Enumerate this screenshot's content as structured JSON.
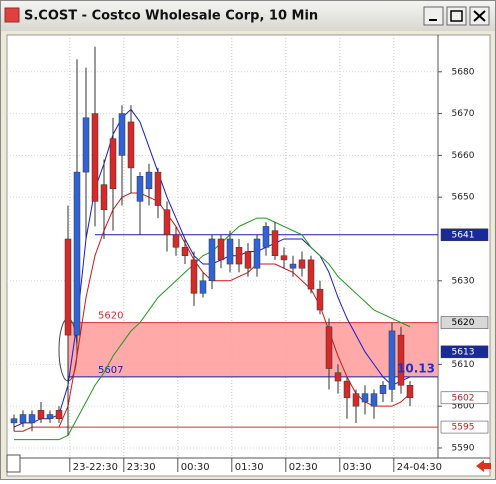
{
  "window": {
    "title": "S.COST - Costco Wholesale Corp, 10 Min"
  },
  "chart_data": {
    "type": "candlestick",
    "ylim": [
      5587.6,
      5688.8
    ],
    "yticks": [
      5590,
      5600,
      5610,
      5630,
      5650,
      5660,
      5670,
      5680
    ],
    "grid": true,
    "x_tick_labels": [
      "23-22:30",
      "23:30",
      "00:30",
      "01:30",
      "02:30",
      "03:30",
      "24-04:30"
    ],
    "up_color": "#2f63d6",
    "down_color": "#d42a2a",
    "open": [
      5596,
      5596,
      5596,
      5599,
      5597,
      5599,
      5640,
      5617,
      5656,
      5670,
      5653,
      5664,
      5660,
      5668,
      5649,
      5652,
      5656,
      5647,
      5641,
      5638,
      5635,
      5627,
      5630,
      5640,
      5634,
      5638,
      5637,
      5633,
      5638,
      5642,
      5636,
      5633,
      5635,
      5635,
      5628,
      5619,
      5608,
      5606,
      5603,
      5601,
      5600,
      5603,
      5604,
      5617,
      5605
    ],
    "high": [
      5598,
      5599,
      5599,
      5601,
      5599,
      5600,
      5648,
      5683,
      5681,
      5686,
      5659,
      5669,
      5672,
      5672,
      5656,
      5658,
      5657,
      5649,
      5643,
      5640,
      5637,
      5632,
      5641,
      5641,
      5642,
      5640,
      5639,
      5641,
      5644,
      5644,
      5638,
      5636,
      5637,
      5636,
      5630,
      5621,
      5610,
      5607,
      5604,
      5605,
      5604,
      5606,
      5620,
      5619,
      5606
    ],
    "low": [
      5594,
      5595,
      5594,
      5596,
      5596,
      5596,
      5593,
      5615,
      5640,
      5643,
      5640,
      5642,
      5648,
      5651,
      5641,
      5648,
      5645,
      5637,
      5636,
      5634,
      5624,
      5626,
      5628,
      5633,
      5632,
      5632,
      5631,
      5631,
      5636,
      5635,
      5633,
      5631,
      5631,
      5627,
      5622,
      5604,
      5603,
      5597,
      5596,
      5598,
      5597,
      5601,
      5601,
      5603,
      5600
    ],
    "close": [
      5597,
      5598,
      5598,
      5597,
      5598,
      5597,
      5617,
      5656,
      5669,
      5649,
      5647,
      5652,
      5670,
      5657,
      5655,
      5656,
      5648,
      5641,
      5638,
      5636,
      5627,
      5630,
      5640,
      5635,
      5640,
      5634,
      5633,
      5640,
      5643,
      5636,
      5635,
      5634,
      5633,
      5628,
      5623,
      5609,
      5606,
      5602,
      5600,
      5603,
      5603,
      5605,
      5618,
      5605,
      5602
    ],
    "overlays": [
      {
        "color": "#1a1ad0",
        "values": [
          5595,
          5596,
          5596,
          5597,
          5597,
          5598,
          5605,
          5620,
          5640,
          5652,
          5658,
          5665,
          5669,
          5671,
          5668,
          5662,
          5656,
          5650,
          5645,
          5640,
          5636,
          5634,
          5634,
          5635,
          5636,
          5636,
          5637,
          5637,
          5638,
          5639,
          5640,
          5640,
          5640,
          5638,
          5636,
          5632,
          5626,
          5621,
          5617,
          5613,
          5610,
          5607,
          5605,
          5606,
          5607
        ]
      },
      {
        "color": "#d01818",
        "values": [
          5594,
          5594,
          5595,
          5595,
          5595,
          5595,
          5600,
          5612,
          5626,
          5636,
          5642,
          5647,
          5650,
          5651,
          5651,
          5650,
          5649,
          5646,
          5643,
          5639,
          5635,
          5632,
          5630,
          5630,
          5630,
          5631,
          5632,
          5634,
          5634,
          5634,
          5633,
          5632,
          5630,
          5628,
          5624,
          5618,
          5612,
          5607,
          5603,
          5601,
          5600,
          5600,
          5600,
          5601,
          5603
        ]
      },
      {
        "color": "#1c9a1c",
        "values": [
          5592,
          5592,
          5592,
          5592,
          5592,
          5592,
          5593,
          5597,
          5601,
          5605,
          5608,
          5612,
          5615,
          5618,
          5620,
          5623,
          5626,
          5628,
          5630,
          5632,
          5634,
          5636,
          5637,
          5639,
          5641,
          5643,
          5644,
          5645,
          5645,
          5644,
          5643,
          5642,
          5641,
          5638,
          5636,
          5634,
          5631,
          5629,
          5627,
          5625,
          5623,
          5622,
          5621,
          5620,
          5619
        ]
      }
    ],
    "zone": {
      "from": 5607,
      "to": 5620,
      "color": "#ff9a9a"
    },
    "levels": [
      {
        "value": 5641,
        "color": "#1a1ab0",
        "start": 9,
        "show_label": false
      },
      {
        "value": 5620,
        "color": "#d03030",
        "start": 6,
        "show_label": true
      },
      {
        "value": 5607,
        "color": "#1a1ab0",
        "start": 6,
        "show_label": true
      },
      {
        "value": 5595,
        "color": "#d03030",
        "start": 5,
        "show_label": false
      }
    ],
    "price_tags": [
      {
        "value": 5641,
        "bg": "#1a2a9a",
        "fg": "#ffffff"
      },
      {
        "value": 5620,
        "bg": "#d8d8d8",
        "fg": "#000000"
      },
      {
        "value": 5613,
        "bg": "#1a2a9a",
        "fg": "#ffffff"
      },
      {
        "value": 5602,
        "bg": "#ffffff",
        "fg": "#c02020"
      },
      {
        "value": 5595,
        "bg": "#ffffff",
        "fg": "#c02020"
      }
    ],
    "annotation": "10.13"
  }
}
